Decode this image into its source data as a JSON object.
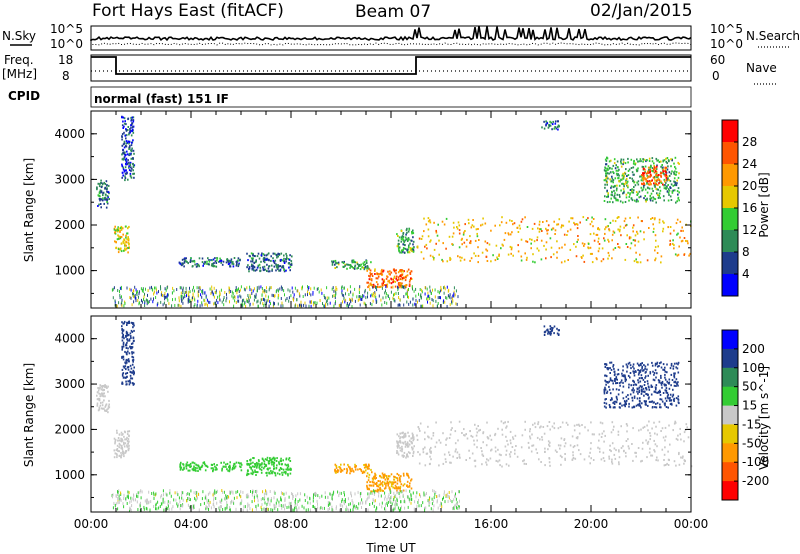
{
  "header": {
    "station": "Fort Hays East (fitACF)",
    "beam": "Beam 07",
    "date": "02/Jan/2015"
  },
  "strip": {
    "nsky_label": "N.Sky",
    "nsearch_label": "N.Search",
    "nsky_ticks": [
      "10^5",
      "10^0"
    ],
    "nsearch_ticks": [
      "10^5",
      "10^0"
    ],
    "freq_label": "Freq.",
    "freq_unit": "[MHz]",
    "freq_ticks": [
      "18",
      "8"
    ],
    "nave_label": "Nave",
    "nave_ticks": [
      "60",
      "0"
    ],
    "cpid_label": "CPID",
    "cpid_text": "normal (fast) 151 IF"
  },
  "chart_data": [
    {
      "type": "heatmap",
      "name": "power",
      "ylabel": "Slant Range [km]",
      "xlabel": "",
      "colorbar_label": "Power [dB]",
      "colorbar_ticks": [
        "28",
        "24",
        "20",
        "16",
        "12",
        "8",
        "4"
      ],
      "colorbar_colors": [
        "#ff0000",
        "#ff5500",
        "#ff9900",
        "#e6c800",
        "#33cc33",
        "#2e8b57",
        "#1e3c8c",
        "#0000ff"
      ],
      "ylim": [
        180,
        4500
      ],
      "yticks": [
        "4000",
        "3000",
        "2000",
        "1000"
      ],
      "xlim": [
        0,
        24
      ],
      "regions": [
        {
          "x": [
            0.2,
            0.7
          ],
          "y": [
            2400,
            3000
          ],
          "level": 8
        },
        {
          "x": [
            0.9,
            1.5
          ],
          "y": [
            1400,
            2000
          ],
          "level": 18
        },
        {
          "x": [
            1.2,
            1.7
          ],
          "y": [
            3000,
            4400
          ],
          "level": 6
        },
        {
          "x": [
            3.5,
            6.0
          ],
          "y": [
            1100,
            1300
          ],
          "level": 8
        },
        {
          "x": [
            6.2,
            8.0
          ],
          "y": [
            1000,
            1400
          ],
          "level": 8
        },
        {
          "x": [
            9.6,
            11.2
          ],
          "y": [
            1050,
            1250
          ],
          "level": 12
        },
        {
          "x": [
            11.0,
            12.8
          ],
          "y": [
            650,
            1050
          ],
          "level": 24
        },
        {
          "x": [
            12.2,
            12.9
          ],
          "y": [
            1400,
            1950
          ],
          "level": 12
        },
        {
          "x": [
            13.0,
            24.0
          ],
          "y": [
            1200,
            2200
          ],
          "level": 20
        },
        {
          "x": [
            18.0,
            18.7
          ],
          "y": [
            4100,
            4300
          ],
          "level": 8
        },
        {
          "x": [
            20.5,
            23.5
          ],
          "y": [
            2500,
            3500
          ],
          "level": 12
        },
        {
          "x": [
            22.0,
            23.0
          ],
          "y": [
            2900,
            3300
          ],
          "level": 26
        }
      ]
    },
    {
      "type": "heatmap",
      "name": "velocity",
      "ylabel": "Slant Range [km]",
      "xlabel": "Time UT",
      "colorbar_label": "Velocity [m s^-1]",
      "colorbar_ticks": [
        "200",
        "100",
        "50",
        "15",
        "-15",
        "-50",
        "-100",
        "-200"
      ],
      "colorbar_colors": [
        "#0000ff",
        "#1e3c8c",
        "#2e8b57",
        "#33cc33",
        "#c8c8c8",
        "#e6c800",
        "#ff9900",
        "#ff5500",
        "#ff0000"
      ],
      "ylim": [
        180,
        4500
      ],
      "yticks": [
        "4000",
        "3000",
        "2000",
        "1000"
      ],
      "xlim": [
        0,
        24
      ],
      "xticks": [
        "00:00",
        "04:00",
        "08:00",
        "12:00",
        "16:00",
        "20:00",
        "00:00"
      ],
      "regions": [
        {
          "x": [
            0.2,
            0.7
          ],
          "y": [
            2400,
            3000
          ],
          "level": 0
        },
        {
          "x": [
            0.9,
            1.5
          ],
          "y": [
            1400,
            2000
          ],
          "level": 0
        },
        {
          "x": [
            1.2,
            1.7
          ],
          "y": [
            3000,
            4400
          ],
          "level": 150
        },
        {
          "x": [
            3.5,
            6.0
          ],
          "y": [
            1100,
            1300
          ],
          "level": 30
        },
        {
          "x": [
            6.2,
            8.0
          ],
          "y": [
            1000,
            1400
          ],
          "level": 30
        },
        {
          "x": [
            9.6,
            11.2
          ],
          "y": [
            1050,
            1250
          ],
          "level": -60
        },
        {
          "x": [
            11.0,
            12.8
          ],
          "y": [
            650,
            1050
          ],
          "level": -60
        },
        {
          "x": [
            12.2,
            12.9
          ],
          "y": [
            1400,
            1950
          ],
          "level": 0
        },
        {
          "x": [
            13.0,
            24.0
          ],
          "y": [
            1200,
            2200
          ],
          "level": 0
        },
        {
          "x": [
            18.0,
            18.7
          ],
          "y": [
            4100,
            4300
          ],
          "level": 180
        },
        {
          "x": [
            20.5,
            23.5
          ],
          "y": [
            2500,
            3500
          ],
          "level": 180
        }
      ]
    }
  ]
}
